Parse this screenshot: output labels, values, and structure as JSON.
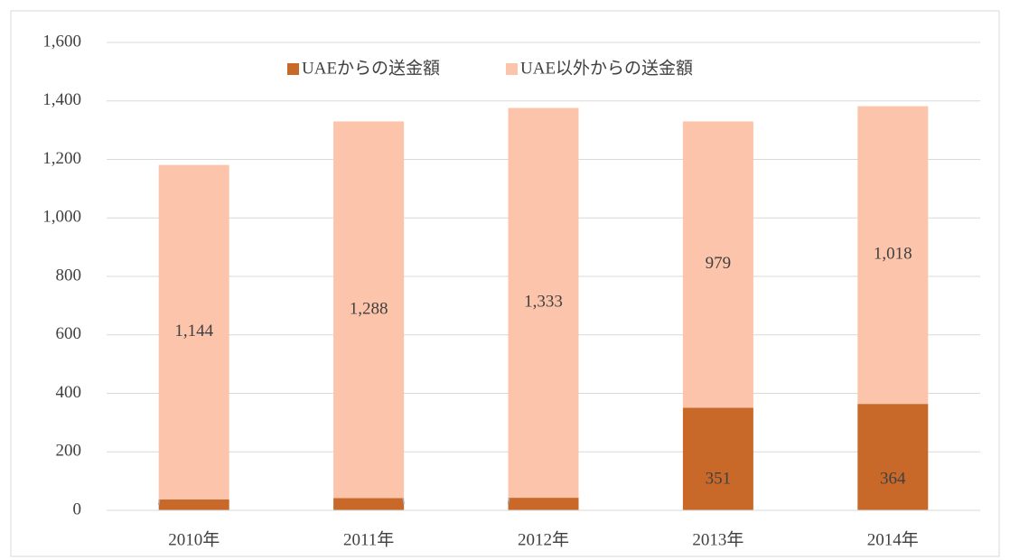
{
  "chart_data": {
    "type": "stacked_bar",
    "categories": [
      "2010年",
      "2011年",
      "2012年",
      "2013年",
      "2014年"
    ],
    "series": [
      {
        "name": "UAEからの送金額",
        "color": "#c8692a",
        "values": [
          37,
          42,
          43,
          351,
          364
        ]
      },
      {
        "name": "UAE以外からの送金額",
        "color": "#fcc4ab",
        "values": [
          1144,
          1288,
          1333,
          979,
          1018
        ],
        "value_labels": [
          "1,144",
          "1,288",
          "1,333",
          "979",
          "1,018"
        ]
      }
    ],
    "ylim": [
      0,
      1600
    ],
    "yticks": [
      0,
      200,
      400,
      600,
      800,
      {
        "value": 1000,
        "label": "1,000"
      },
      {
        "value": 1200,
        "label": "1,200"
      },
      {
        "value": 1400,
        "label": "1,400"
      },
      {
        "value": 1600,
        "label": "1,600"
      }
    ],
    "grid": true,
    "legend": "top"
  }
}
